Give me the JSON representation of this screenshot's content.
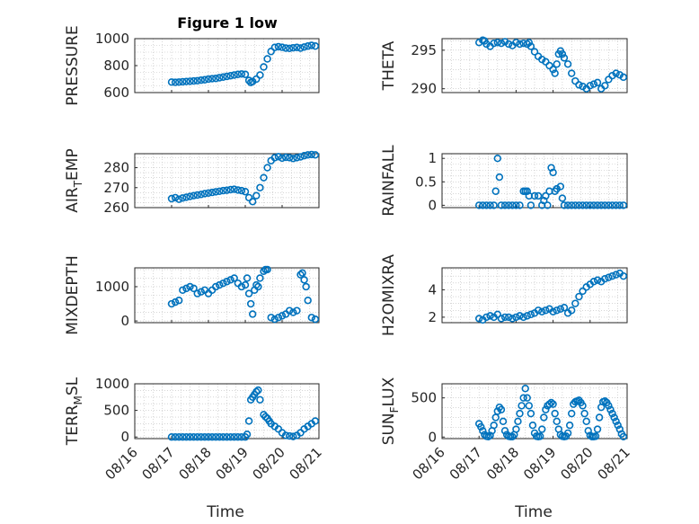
{
  "figure": {
    "title": "Figure 1 low"
  },
  "colors": {
    "marker": "#0072bd",
    "axis": "#262626",
    "grid": "#bdbdbd"
  },
  "chart_data": [
    {
      "type": "scatter",
      "ylabel": "PRESSURE",
      "ylim": [
        600,
        1000
      ],
      "yticks": [
        "600",
        "800",
        "1000"
      ],
      "xlim": [
        0,
        5
      ],
      "x": [
        1.0,
        1.1,
        1.2,
        1.3,
        1.4,
        1.5,
        1.6,
        1.7,
        1.8,
        1.9,
        2.0,
        2.1,
        2.2,
        2.3,
        2.4,
        2.5,
        2.6,
        2.7,
        2.8,
        2.9,
        3.0,
        3.1,
        3.15,
        3.2,
        3.3,
        3.4,
        3.5,
        3.6,
        3.7,
        3.8,
        3.9,
        4.0,
        4.1,
        4.2,
        4.3,
        4.4,
        4.5,
        4.6,
        4.7,
        4.8,
        4.9
      ],
      "y": [
        678,
        676,
        678,
        680,
        682,
        684,
        686,
        688,
        692,
        695,
        700,
        703,
        705,
        710,
        715,
        720,
        725,
        730,
        735,
        738,
        735,
        690,
        675,
        682,
        700,
        730,
        790,
        850,
        905,
        935,
        940,
        936,
        930,
        928,
        932,
        935,
        930,
        938,
        945,
        950,
        945
      ]
    },
    {
      "type": "scatter",
      "ylabel": "THETA",
      "ylim": [
        289.5,
        296.5
      ],
      "yticks": [
        "290",
        "295"
      ],
      "xlim": [
        0,
        5
      ],
      "x": [
        1.0,
        1.1,
        1.15,
        1.2,
        1.3,
        1.4,
        1.5,
        1.6,
        1.7,
        1.8,
        1.9,
        2.0,
        2.1,
        2.2,
        2.3,
        2.35,
        2.4,
        2.5,
        2.6,
        2.7,
        2.8,
        2.9,
        3.0,
        3.05,
        3.1,
        3.15,
        3.2,
        3.25,
        3.3,
        3.4,
        3.5,
        3.6,
        3.7,
        3.8,
        3.9,
        4.0,
        4.1,
        4.2,
        4.3,
        4.4,
        4.5,
        4.6,
        4.7,
        4.8,
        4.9
      ],
      "y": [
        296.0,
        296.3,
        296.2,
        295.8,
        295.5,
        295.9,
        296.0,
        295.9,
        296.1,
        295.8,
        295.6,
        296.0,
        295.8,
        295.9,
        295.8,
        296.0,
        295.5,
        294.8,
        294.2,
        293.8,
        293.5,
        293.0,
        292.5,
        292.0,
        293.2,
        294.5,
        294.9,
        294.5,
        294.0,
        293.2,
        292.0,
        291.0,
        290.5,
        290.3,
        290.0,
        290.4,
        290.6,
        290.8,
        290.0,
        290.4,
        291.2,
        291.7,
        292.0,
        291.8,
        291.5
      ]
    },
    {
      "type": "scatter",
      "ylabel": "AIR",
      "ylabel_sub": "T",
      "ylabel_rest": "EMP",
      "ylim": [
        260,
        287
      ],
      "yticks": [
        "260",
        "270",
        "280"
      ],
      "xlim": [
        0,
        5
      ],
      "x": [
        1.0,
        1.1,
        1.2,
        1.3,
        1.4,
        1.5,
        1.6,
        1.7,
        1.8,
        1.9,
        2.0,
        2.1,
        2.2,
        2.3,
        2.4,
        2.5,
        2.6,
        2.7,
        2.8,
        2.9,
        3.0,
        3.1,
        3.2,
        3.3,
        3.4,
        3.5,
        3.6,
        3.7,
        3.8,
        3.9,
        4.0,
        4.1,
        4.2,
        4.3,
        4.4,
        4.5,
        4.6,
        4.7,
        4.8,
        4.9
      ],
      "y": [
        264.5,
        265.0,
        264.2,
        264.8,
        265.2,
        265.6,
        266.0,
        266.3,
        266.6,
        267.0,
        267.3,
        267.6,
        267.9,
        268.2,
        268.5,
        268.7,
        269.0,
        269.2,
        268.8,
        268.5,
        268.0,
        265.0,
        263.0,
        266.0,
        270.0,
        275.0,
        280.0,
        283.5,
        285.0,
        285.5,
        284.8,
        285.2,
        285.0,
        284.6,
        285.0,
        285.4,
        286.0,
        286.4,
        286.6,
        286.4
      ]
    },
    {
      "type": "scatter",
      "ylabel": "RAINFALL",
      "ylim": [
        -0.05,
        1.1
      ],
      "yticks": [
        "0",
        "0.5",
        "1"
      ],
      "xlim": [
        0,
        5
      ],
      "x": [
        1.0,
        1.1,
        1.2,
        1.3,
        1.4,
        1.45,
        1.5,
        1.55,
        1.6,
        1.7,
        1.8,
        1.9,
        2.0,
        2.1,
        2.2,
        2.25,
        2.3,
        2.35,
        2.4,
        2.5,
        2.6,
        2.7,
        2.75,
        2.8,
        2.85,
        2.9,
        2.95,
        3.0,
        3.05,
        3.1,
        3.2,
        3.25,
        3.3,
        3.4,
        3.5,
        3.6,
        3.7,
        3.8,
        3.9,
        4.0,
        4.1,
        4.2,
        4.3,
        4.4,
        4.5,
        4.6,
        4.7,
        4.8,
        4.9
      ],
      "y": [
        0,
        0,
        0,
        0,
        0,
        0.3,
        1.0,
        0.6,
        0,
        0,
        0,
        0,
        0,
        0,
        0.3,
        0.3,
        0.3,
        0.2,
        0,
        0.2,
        0.2,
        0,
        0.1,
        0.2,
        0,
        0.3,
        0.8,
        0.7,
        0.3,
        0.35,
        0.4,
        0.15,
        0,
        0,
        0,
        0,
        0,
        0,
        0,
        0,
        0,
        0,
        0,
        0,
        0,
        0,
        0,
        0,
        0
      ]
    },
    {
      "type": "scatter",
      "ylabel": "MIXDEPTH",
      "ylim": [
        -50,
        1550
      ],
      "yticks": [
        "0",
        "1000"
      ],
      "xlim": [
        0,
        5
      ],
      "x": [
        1.0,
        1.1,
        1.2,
        1.3,
        1.4,
        1.5,
        1.6,
        1.7,
        1.8,
        1.9,
        2.0,
        2.1,
        2.2,
        2.3,
        2.4,
        2.5,
        2.6,
        2.7,
        2.8,
        2.9,
        3.0,
        3.05,
        3.1,
        3.15,
        3.2,
        3.25,
        3.3,
        3.35,
        3.4,
        3.5,
        3.55,
        3.6,
        3.7,
        3.8,
        3.9,
        4.0,
        4.1,
        4.2,
        4.3,
        4.4,
        4.5,
        4.55,
        4.6,
        4.65,
        4.7,
        4.8,
        4.9
      ],
      "y": [
        500,
        550,
        600,
        900,
        950,
        1000,
        950,
        800,
        850,
        900,
        800,
        900,
        1000,
        1050,
        1100,
        1150,
        1200,
        1250,
        1100,
        1000,
        1050,
        1250,
        800,
        500,
        200,
        900,
        1050,
        1000,
        1250,
        1450,
        1500,
        1500,
        100,
        50,
        100,
        150,
        200,
        300,
        250,
        300,
        1350,
        1400,
        1200,
        1000,
        600,
        100,
        50
      ]
    },
    {
      "type": "scatter",
      "ylabel": "H2OMIXRA",
      "ylim": [
        1.6,
        5.6
      ],
      "yticks": [
        "2",
        "4"
      ],
      "xlim": [
        0,
        5
      ],
      "x": [
        1.0,
        1.1,
        1.2,
        1.3,
        1.4,
        1.5,
        1.6,
        1.7,
        1.8,
        1.9,
        2.0,
        2.1,
        2.2,
        2.3,
        2.4,
        2.5,
        2.6,
        2.7,
        2.8,
        2.9,
        3.0,
        3.1,
        3.2,
        3.3,
        3.4,
        3.5,
        3.6,
        3.7,
        3.8,
        3.9,
        4.0,
        4.1,
        4.2,
        4.3,
        4.4,
        4.5,
        4.6,
        4.7,
        4.8,
        4.9
      ],
      "y": [
        1.9,
        1.8,
        2.0,
        2.1,
        2.0,
        2.2,
        1.9,
        2.0,
        2.0,
        1.9,
        2.0,
        2.1,
        2.0,
        2.1,
        2.2,
        2.3,
        2.5,
        2.4,
        2.5,
        2.6,
        2.4,
        2.5,
        2.6,
        2.7,
        2.3,
        2.5,
        3.0,
        3.5,
        3.9,
        4.2,
        4.4,
        4.6,
        4.7,
        4.6,
        4.8,
        4.9,
        5.0,
        5.1,
        5.2,
        5.0
      ]
    },
    {
      "type": "scatter",
      "ylabel": "TERR",
      "ylabel_sub": "M",
      "ylabel_rest": "SL",
      "ylim": [
        -30,
        1000
      ],
      "yticks": [
        "0",
        "500",
        "1000"
      ],
      "xlim": [
        0,
        5
      ],
      "x": [
        1.0,
        1.1,
        1.2,
        1.3,
        1.4,
        1.5,
        1.6,
        1.7,
        1.8,
        1.9,
        2.0,
        2.1,
        2.2,
        2.3,
        2.4,
        2.5,
        2.6,
        2.7,
        2.8,
        2.9,
        3.0,
        3.05,
        3.1,
        3.15,
        3.2,
        3.25,
        3.3,
        3.35,
        3.4,
        3.5,
        3.55,
        3.6,
        3.65,
        3.7,
        3.8,
        3.9,
        4.0,
        4.1,
        4.2,
        4.3,
        4.4,
        4.5,
        4.6,
        4.7,
        4.8,
        4.9
      ],
      "y": [
        0,
        0,
        0,
        0,
        0,
        0,
        0,
        0,
        0,
        0,
        0,
        0,
        0,
        0,
        0,
        0,
        0,
        0,
        0,
        0,
        0,
        50,
        300,
        700,
        750,
        800,
        850,
        880,
        700,
        420,
        380,
        350,
        300,
        250,
        200,
        150,
        80,
        30,
        20,
        10,
        30,
        80,
        150,
        200,
        250,
        300
      ]
    },
    {
      "type": "scatter",
      "ylabel": "SUN",
      "ylabel_sub": "F",
      "ylabel_rest": "LUX",
      "ylim": [
        -20,
        680
      ],
      "yticks": [
        "0",
        "500"
      ],
      "xlim": [
        0,
        5
      ],
      "x": [
        1.0,
        1.05,
        1.1,
        1.15,
        1.2,
        1.25,
        1.3,
        1.35,
        1.4,
        1.45,
        1.5,
        1.55,
        1.6,
        1.65,
        1.7,
        1.75,
        1.8,
        1.85,
        1.9,
        1.95,
        2.0,
        2.05,
        2.1,
        2.15,
        2.2,
        2.25,
        2.3,
        2.35,
        2.4,
        2.45,
        2.5,
        2.55,
        2.6,
        2.65,
        2.7,
        2.75,
        2.8,
        2.85,
        2.9,
        2.95,
        3.0,
        3.05,
        3.1,
        3.15,
        3.2,
        3.25,
        3.3,
        3.35,
        3.4,
        3.45,
        3.5,
        3.55,
        3.6,
        3.65,
        3.7,
        3.75,
        3.8,
        3.85,
        3.9,
        3.95,
        4.0,
        4.05,
        4.1,
        4.15,
        4.2,
        4.25,
        4.3,
        4.35,
        4.4,
        4.45,
        4.5,
        4.55,
        4.6,
        4.65,
        4.7,
        4.75,
        4.8,
        4.85,
        4.9
      ],
      "y": [
        170,
        130,
        80,
        30,
        10,
        5,
        20,
        80,
        150,
        250,
        330,
        380,
        350,
        200,
        80,
        30,
        10,
        5,
        5,
        30,
        100,
        200,
        300,
        400,
        500,
        620,
        500,
        400,
        300,
        150,
        50,
        10,
        5,
        10,
        100,
        250,
        350,
        400,
        420,
        440,
        420,
        300,
        200,
        100,
        30,
        10,
        5,
        10,
        50,
        150,
        300,
        420,
        450,
        460,
        470,
        440,
        400,
        300,
        200,
        80,
        20,
        5,
        5,
        10,
        100,
        250,
        380,
        450,
        460,
        440,
        400,
        350,
        300,
        250,
        200,
        150,
        100,
        40,
        5
      ]
    }
  ],
  "xaxis": {
    "ticks": [
      "08/16",
      "08/17",
      "08/18",
      "08/19",
      "08/20",
      "08/21"
    ],
    "label": "Time"
  }
}
